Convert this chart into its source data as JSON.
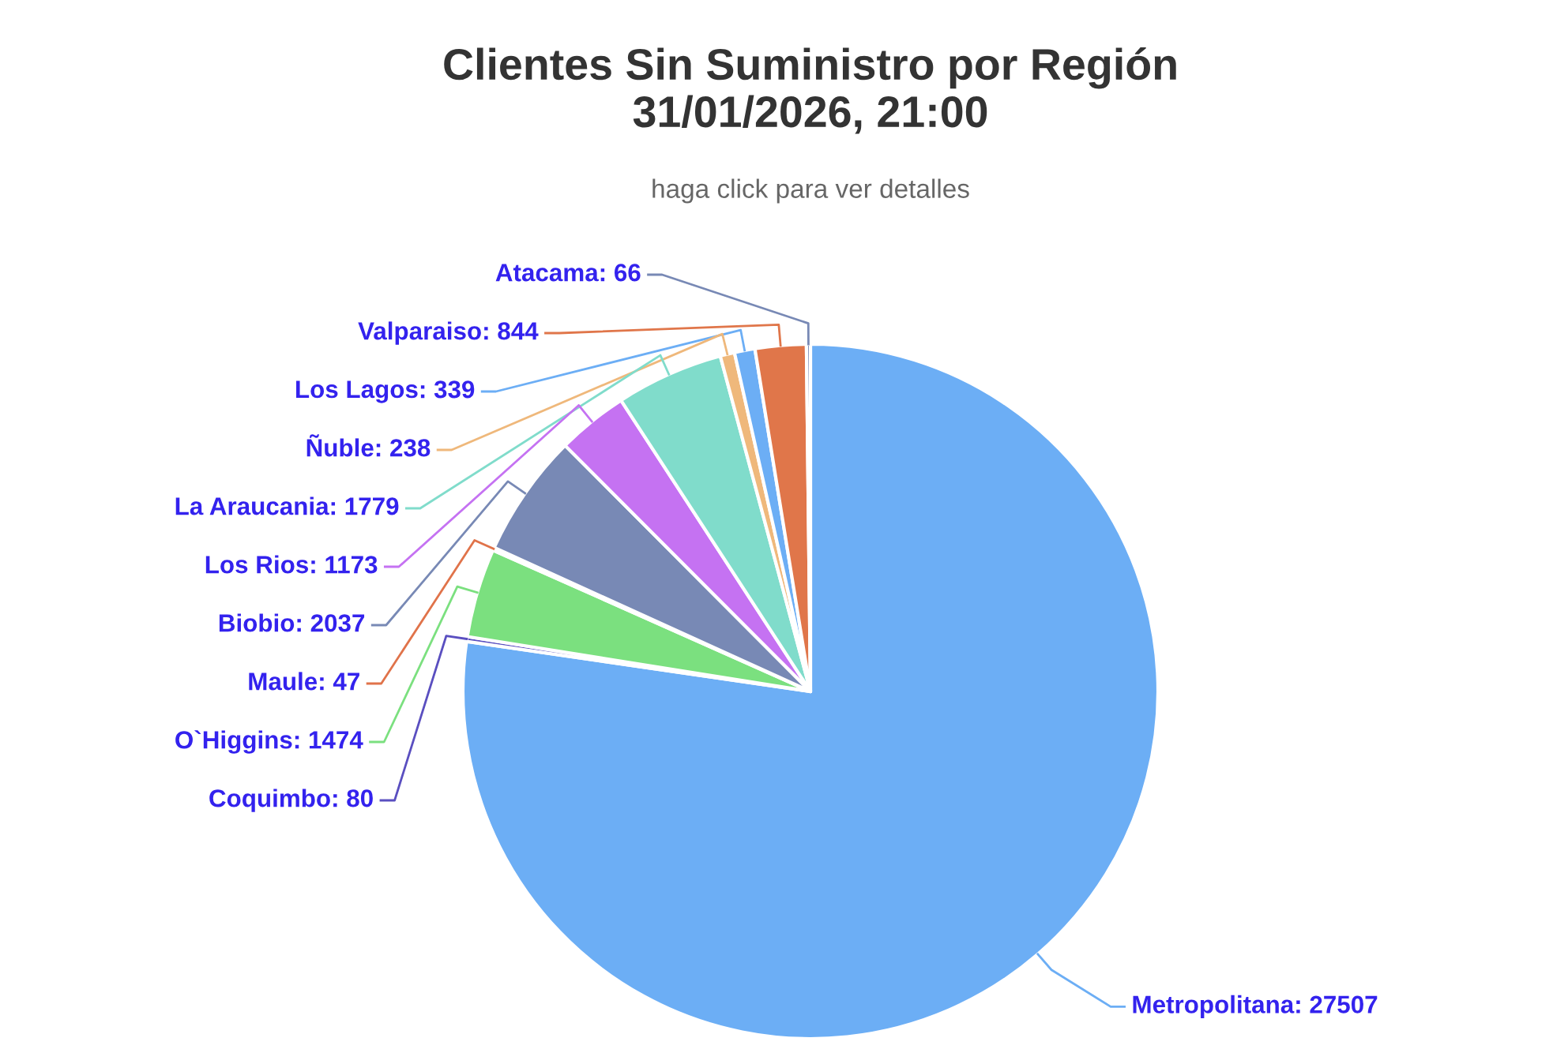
{
  "chart_data": {
    "type": "pie",
    "title": "Clientes Sin Suministro por Región\n31/01/2026, 21:00",
    "subtitle": "haga click para ver detalles",
    "categories": [
      "Metropolitana",
      "Coquimbo",
      "O`Higgins",
      "Maule",
      "Biobio",
      "Los Rios",
      "La Araucania",
      "Ñuble",
      "Los Lagos",
      "Valparaiso",
      "Atacama"
    ],
    "values": [
      27507,
      80,
      1474,
      47,
      2037,
      1173,
      1779,
      238,
      339,
      844,
      66
    ],
    "value_labels": [
      ": 27507",
      ": 80",
      ": 1474",
      ": 47",
      ": 2037",
      ": 1173",
      ": 1779",
      ": 238",
      ": 339",
      ": 844",
      ": 66"
    ],
    "colors": [
      "#6caef5",
      "#5a4fc0",
      "#7be07f",
      "#e0734a",
      "#7889b5",
      "#c572f2",
      "#80dccb",
      "#efb87b",
      "#6caef5",
      "#e0764a",
      "#7889b5"
    ]
  }
}
